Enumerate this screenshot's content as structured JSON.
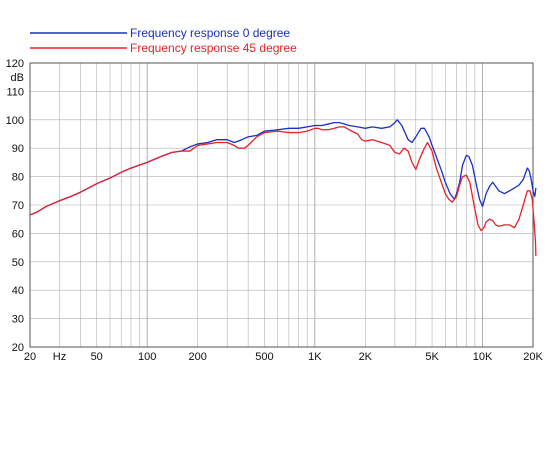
{
  "chart_data": {
    "type": "line",
    "xscale": "log",
    "xlim": [
      20,
      20000
    ],
    "ylim": [
      20,
      120
    ],
    "yunit": "dB",
    "xunit": "Hz",
    "grid": true,
    "legend_placement": "top-left",
    "x_ticks": [
      {
        "value": 20,
        "label": "20"
      },
      {
        "value": 30,
        "label": "Hz"
      },
      {
        "value": 50,
        "label": "50"
      },
      {
        "value": 100,
        "label": "100"
      },
      {
        "value": 200,
        "label": "200"
      },
      {
        "value": 500,
        "label": "500"
      },
      {
        "value": 1000,
        "label": "1K"
      },
      {
        "value": 2000,
        "label": "2K"
      },
      {
        "value": 5000,
        "label": "5K"
      },
      {
        "value": 10000,
        "label": "10K"
      },
      {
        "value": 20000,
        "label": "20K"
      }
    ],
    "y_ticks": [
      {
        "value": 120,
        "label": "120"
      },
      {
        "value": 115,
        "label": "dB"
      },
      {
        "value": 110,
        "label": "110"
      },
      {
        "value": 100,
        "label": "100"
      },
      {
        "value": 90,
        "label": "90"
      },
      {
        "value": 80,
        "label": "80"
      },
      {
        "value": 70,
        "label": "70"
      },
      {
        "value": 60,
        "label": "60"
      },
      {
        "value": 50,
        "label": "50"
      },
      {
        "value": 40,
        "label": "40"
      },
      {
        "value": 30,
        "label": "30"
      },
      {
        "value": 20,
        "label": "20"
      }
    ],
    "series": [
      {
        "name": "Frequency response 0 degree",
        "color": "#1a2fc8",
        "points": [
          [
            20,
            66.5
          ],
          [
            22,
            67.5
          ],
          [
            25,
            69.5
          ],
          [
            30,
            71.5
          ],
          [
            35,
            73
          ],
          [
            40,
            74.5
          ],
          [
            50,
            77.5
          ],
          [
            60,
            79.5
          ],
          [
            70,
            81.5
          ],
          [
            80,
            83
          ],
          [
            100,
            85
          ],
          [
            120,
            87
          ],
          [
            140,
            88.5
          ],
          [
            160,
            89
          ],
          [
            180,
            90.5
          ],
          [
            200,
            91.5
          ],
          [
            230,
            92
          ],
          [
            260,
            93
          ],
          [
            300,
            93
          ],
          [
            330,
            92
          ],
          [
            350,
            92.5
          ],
          [
            400,
            94
          ],
          [
            450,
            94.5
          ],
          [
            500,
            96
          ],
          [
            600,
            96.5
          ],
          [
            700,
            97
          ],
          [
            800,
            97
          ],
          [
            900,
            97.5
          ],
          [
            1000,
            98
          ],
          [
            1100,
            98
          ],
          [
            1200,
            98.5
          ],
          [
            1300,
            99
          ],
          [
            1400,
            99
          ],
          [
            1500,
            98.5
          ],
          [
            1600,
            98
          ],
          [
            1800,
            97.5
          ],
          [
            2000,
            97
          ],
          [
            2200,
            97.5
          ],
          [
            2500,
            97
          ],
          [
            2800,
            97.5
          ],
          [
            3000,
            99
          ],
          [
            3100,
            100
          ],
          [
            3300,
            98
          ],
          [
            3600,
            93
          ],
          [
            3800,
            92
          ],
          [
            4000,
            94
          ],
          [
            4300,
            97
          ],
          [
            4500,
            97
          ],
          [
            4800,
            94
          ],
          [
            5000,
            91
          ],
          [
            5300,
            87
          ],
          [
            5700,
            82
          ],
          [
            6000,
            78
          ],
          [
            6400,
            74
          ],
          [
            6800,
            72
          ],
          [
            7000,
            74
          ],
          [
            7300,
            78
          ],
          [
            7600,
            84
          ],
          [
            8000,
            87.5
          ],
          [
            8300,
            87
          ],
          [
            8700,
            84
          ],
          [
            9200,
            77
          ],
          [
            9600,
            72
          ],
          [
            10000,
            69.5
          ],
          [
            10500,
            74
          ],
          [
            11000,
            76.5
          ],
          [
            11500,
            78
          ],
          [
            12000,
            76.5
          ],
          [
            12500,
            75
          ],
          [
            13500,
            74
          ],
          [
            14500,
            75
          ],
          [
            15500,
            76
          ],
          [
            16500,
            77
          ],
          [
            17500,
            79
          ],
          [
            18500,
            83
          ],
          [
            19000,
            82
          ],
          [
            19500,
            79
          ],
          [
            20000,
            75
          ],
          [
            20500,
            73
          ],
          [
            21000,
            76
          ]
        ]
      },
      {
        "name": "Frequency response 45 degree",
        "color": "#e8222a",
        "points": [
          [
            20,
            66.5
          ],
          [
            22,
            67.5
          ],
          [
            25,
            69.5
          ],
          [
            30,
            71.5
          ],
          [
            35,
            73
          ],
          [
            40,
            74.5
          ],
          [
            50,
            77.5
          ],
          [
            60,
            79.5
          ],
          [
            70,
            81.5
          ],
          [
            80,
            83
          ],
          [
            100,
            85
          ],
          [
            120,
            87
          ],
          [
            140,
            88.5
          ],
          [
            160,
            89
          ],
          [
            180,
            89
          ],
          [
            200,
            91
          ],
          [
            230,
            91.5
          ],
          [
            260,
            92
          ],
          [
            300,
            92
          ],
          [
            330,
            91
          ],
          [
            350,
            90
          ],
          [
            380,
            90
          ],
          [
            400,
            91
          ],
          [
            450,
            94
          ],
          [
            500,
            95.5
          ],
          [
            600,
            96
          ],
          [
            700,
            95.5
          ],
          [
            800,
            95.5
          ],
          [
            900,
            96
          ],
          [
            1000,
            97
          ],
          [
            1050,
            97
          ],
          [
            1100,
            96.5
          ],
          [
            1200,
            96.5
          ],
          [
            1300,
            97
          ],
          [
            1400,
            97.5
          ],
          [
            1500,
            97.5
          ],
          [
            1600,
            96.5
          ],
          [
            1800,
            95
          ],
          [
            1900,
            93
          ],
          [
            2000,
            92.5
          ],
          [
            2200,
            93
          ],
          [
            2500,
            92
          ],
          [
            2800,
            91
          ],
          [
            3000,
            88.5
          ],
          [
            3200,
            88
          ],
          [
            3400,
            90
          ],
          [
            3600,
            89
          ],
          [
            3800,
            85
          ],
          [
            4000,
            82.5
          ],
          [
            4200,
            86
          ],
          [
            4500,
            90
          ],
          [
            4700,
            92
          ],
          [
            5000,
            89
          ],
          [
            5300,
            83
          ],
          [
            5600,
            79
          ],
          [
            6000,
            74
          ],
          [
            6300,
            72
          ],
          [
            6600,
            71
          ],
          [
            7000,
            73
          ],
          [
            7300,
            77
          ],
          [
            7600,
            80
          ],
          [
            8000,
            80.5
          ],
          [
            8400,
            78
          ],
          [
            8900,
            70
          ],
          [
            9400,
            63
          ],
          [
            9800,
            61
          ],
          [
            10200,
            62
          ],
          [
            10500,
            64
          ],
          [
            11000,
            65
          ],
          [
            11500,
            64.5
          ],
          [
            12000,
            63
          ],
          [
            12500,
            62.5
          ],
          [
            13500,
            63
          ],
          [
            14500,
            63
          ],
          [
            15500,
            62
          ],
          [
            16500,
            65
          ],
          [
            17500,
            70
          ],
          [
            18500,
            75
          ],
          [
            19200,
            75
          ],
          [
            19800,
            72
          ],
          [
            20300,
            64
          ],
          [
            20700,
            57
          ],
          [
            21000,
            52
          ]
        ]
      }
    ]
  }
}
